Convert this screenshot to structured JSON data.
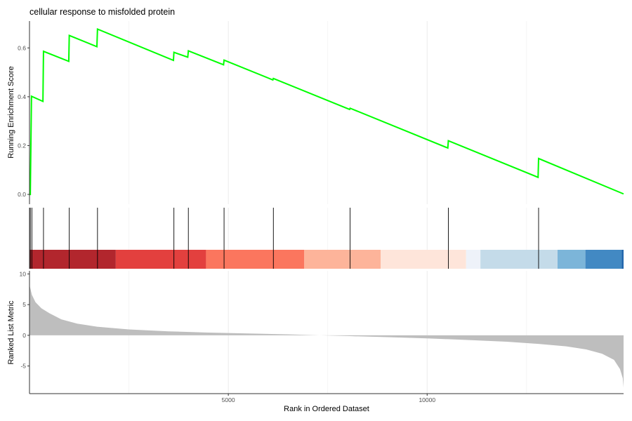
{
  "chart_data": {
    "type": "line",
    "title": "cellular response to misfolded protein",
    "xlabel": "Rank in Ordered Dataset",
    "xlim": [
      0,
      14940
    ],
    "x_ticks": [
      5000,
      10000
    ],
    "x_tick_labels": [
      "5000",
      "10000"
    ],
    "grid": true,
    "colors": {
      "running_score": "#00ff00",
      "hit_line": "#000000",
      "ranked_area": "#bebebe",
      "gridline": "#ebebeb"
    },
    "panels": {
      "running_score": {
        "ylabel": "Running Enrichment Score",
        "ylim": [
          -0.04,
          0.71
        ],
        "y_ticks": [
          0.0,
          0.2,
          0.4,
          0.6
        ],
        "y_tick_labels": [
          "0.0",
          "0.2",
          "0.4",
          "0.6"
        ],
        "points": [
          [
            0,
            0.0
          ],
          [
            20,
            0.0
          ],
          [
            50,
            0.402
          ],
          [
            338,
            0.381
          ],
          [
            352,
            0.586
          ],
          [
            988,
            0.545
          ],
          [
            1000,
            0.651
          ],
          [
            1695,
            0.605
          ],
          [
            1710,
            0.677
          ],
          [
            3620,
            0.549
          ],
          [
            3632,
            0.582
          ],
          [
            3980,
            0.562
          ],
          [
            3995,
            0.588
          ],
          [
            4880,
            0.531
          ],
          [
            4893,
            0.55
          ],
          [
            6120,
            0.469
          ],
          [
            6133,
            0.475
          ],
          [
            8050,
            0.348
          ],
          [
            8063,
            0.353
          ],
          [
            10520,
            0.19
          ],
          [
            10533,
            0.22
          ],
          [
            12790,
            0.07
          ],
          [
            12803,
            0.147
          ],
          [
            14940,
            0.002
          ]
        ]
      },
      "hits": {
        "positions": [
          20,
          60,
          352,
          1000,
          1710,
          3632,
          3995,
          4893,
          6133,
          8063,
          10533,
          12803
        ]
      },
      "color_bar": {
        "segments": [
          {
            "start": 0,
            "end": 2170,
            "color": "#b2262d"
          },
          {
            "start": 2170,
            "end": 4440,
            "color": "#e3403e"
          },
          {
            "start": 4440,
            "end": 6910,
            "color": "#fb765e"
          },
          {
            "start": 6910,
            "end": 8830,
            "color": "#fdb49a"
          },
          {
            "start": 8830,
            "end": 10980,
            "color": "#fee5da"
          },
          {
            "start": 10980,
            "end": 11340,
            "color": "#eef2f9"
          },
          {
            "start": 11340,
            "end": 13280,
            "color": "#c4dbe9"
          },
          {
            "start": 13280,
            "end": 13980,
            "color": "#7cb5d9"
          },
          {
            "start": 13980,
            "end": 14890,
            "color": "#4289c3"
          },
          {
            "start": 14890,
            "end": 14940,
            "color": "#2166ac"
          }
        ]
      },
      "ranked_list": {
        "ylabel": "Ranked List Metric",
        "ylim": [
          -9.5,
          10.5
        ],
        "y_ticks": [
          10,
          5,
          0,
          -5
        ],
        "y_tick_labels": [
          "10",
          "5",
          "0",
          "-5"
        ],
        "zero_cross_rank": 7300,
        "curve": [
          [
            0,
            8.2
          ],
          [
            60,
            6.6
          ],
          [
            150,
            5.4
          ],
          [
            300,
            4.4
          ],
          [
            500,
            3.6
          ],
          [
            800,
            2.6
          ],
          [
            1200,
            1.9
          ],
          [
            1700,
            1.4
          ],
          [
            2500,
            0.95
          ],
          [
            3500,
            0.65
          ],
          [
            4500,
            0.45
          ],
          [
            5500,
            0.3
          ],
          [
            6500,
            0.15
          ],
          [
            7300,
            0.0
          ],
          [
            8000,
            -0.12
          ],
          [
            9000,
            -0.3
          ],
          [
            10000,
            -0.5
          ],
          [
            11000,
            -0.75
          ],
          [
            12000,
            -1.05
          ],
          [
            12800,
            -1.4
          ],
          [
            13500,
            -1.8
          ],
          [
            14000,
            -2.3
          ],
          [
            14400,
            -3.0
          ],
          [
            14700,
            -4.0
          ],
          [
            14850,
            -5.5
          ],
          [
            14920,
            -7.0
          ],
          [
            14940,
            -8.5
          ]
        ]
      }
    }
  }
}
